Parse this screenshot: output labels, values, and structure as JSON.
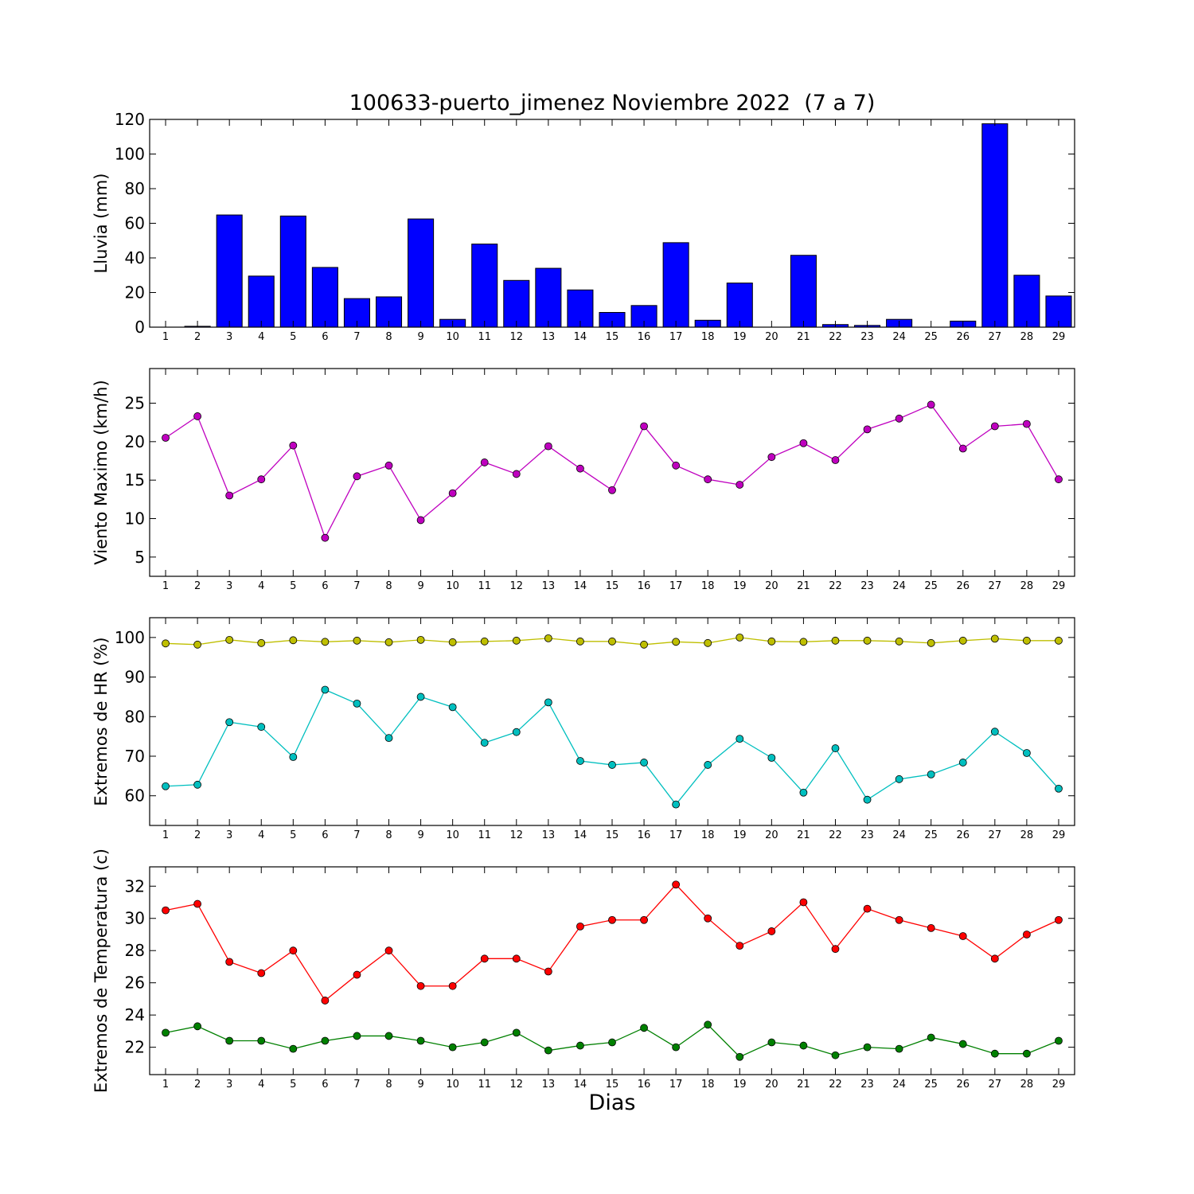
{
  "title": "100633-puerto_jimenez Noviembre 2022  (7 a 7)",
  "xlabel": "Dias",
  "chart_data": [
    {
      "type": "bar",
      "ylabel": "Lluvia (mm)",
      "ylim": [
        0,
        120
      ],
      "yticks": [
        0,
        20,
        40,
        60,
        80,
        100,
        120
      ],
      "categories": [
        1,
        2,
        3,
        4,
        5,
        6,
        7,
        8,
        9,
        10,
        11,
        12,
        13,
        14,
        15,
        16,
        17,
        18,
        19,
        20,
        21,
        22,
        23,
        24,
        25,
        26,
        27,
        28,
        29
      ],
      "series": [
        {
          "color": "#0000ff",
          "values": [
            0,
            0.5,
            64.8,
            29.5,
            64.2,
            34.5,
            16.5,
            17.5,
            62.5,
            4.5,
            48,
            27,
            34,
            21.5,
            8.5,
            12.5,
            48.8,
            4,
            25.5,
            0,
            41.5,
            1.5,
            1,
            4.5,
            0,
            3.5,
            117.5,
            30,
            18
          ]
        }
      ]
    },
    {
      "type": "line",
      "ylabel": "Viento Maximo (km/h)",
      "ylim": [
        2.5,
        29.5
      ],
      "yticks": [
        5,
        10,
        15,
        20,
        25
      ],
      "categories": [
        1,
        2,
        3,
        4,
        5,
        6,
        7,
        8,
        9,
        10,
        11,
        12,
        13,
        14,
        15,
        16,
        17,
        18,
        19,
        20,
        21,
        22,
        23,
        24,
        25,
        26,
        27,
        28,
        29
      ],
      "series": [
        {
          "color": "#bf00bf",
          "values": [
            20.5,
            23.3,
            13,
            15.1,
            19.5,
            7.5,
            15.5,
            16.9,
            9.8,
            13.3,
            17.3,
            15.8,
            19.4,
            16.5,
            13.7,
            22,
            16.9,
            15.1,
            14.4,
            18,
            19.8,
            17.6,
            21.6,
            23,
            24.8,
            19.1,
            22,
            22.3,
            15.1
          ]
        }
      ]
    },
    {
      "type": "line",
      "ylabel": "Extremos de HR (%)",
      "ylim": [
        52.5,
        105
      ],
      "yticks": [
        60,
        70,
        80,
        90,
        100
      ],
      "categories": [
        1,
        2,
        3,
        4,
        5,
        6,
        7,
        8,
        9,
        10,
        11,
        12,
        13,
        14,
        15,
        16,
        17,
        18,
        19,
        20,
        21,
        22,
        23,
        24,
        25,
        26,
        27,
        28,
        29
      ],
      "series": [
        {
          "color": "#bfbf00",
          "values": [
            98.5,
            98.2,
            99.4,
            98.6,
            99.3,
            98.9,
            99.2,
            98.8,
            99.4,
            98.8,
            99,
            99.2,
            99.8,
            99,
            99,
            98.2,
            98.9,
            98.6,
            100,
            99,
            98.9,
            99.2,
            99.2,
            99,
            98.6,
            99.2,
            99.7,
            99.2,
            99.2
          ]
        },
        {
          "color": "#00bfbf",
          "values": [
            62.4,
            62.8,
            78.6,
            77.4,
            69.8,
            86.8,
            83.3,
            74.6,
            85,
            82.4,
            73.4,
            76.1,
            83.6,
            68.8,
            67.8,
            68.4,
            57.8,
            67.8,
            74.4,
            69.6,
            60.8,
            72,
            59,
            64.2,
            65.4,
            68.4,
            76.2,
            70.8,
            61.8
          ]
        }
      ]
    },
    {
      "type": "line",
      "ylabel": "Extremos de Temperatura (c)",
      "ylim": [
        20.3,
        33.2
      ],
      "yticks": [
        22,
        24,
        26,
        28,
        30,
        32
      ],
      "categories": [
        1,
        2,
        3,
        4,
        5,
        6,
        7,
        8,
        9,
        10,
        11,
        12,
        13,
        14,
        15,
        16,
        17,
        18,
        19,
        20,
        21,
        22,
        23,
        24,
        25,
        26,
        27,
        28,
        29
      ],
      "series": [
        {
          "color": "#ff0000",
          "values": [
            30.5,
            30.9,
            27.3,
            26.6,
            28,
            24.9,
            26.5,
            28,
            25.8,
            25.8,
            27.5,
            27.5,
            26.7,
            29.5,
            29.9,
            29.9,
            32.1,
            30,
            28.3,
            29.2,
            31,
            28.1,
            30.6,
            29.9,
            29.4,
            28.9,
            27.5,
            29,
            29.9
          ]
        },
        {
          "color": "#008000",
          "values": [
            22.9,
            23.3,
            22.4,
            22.4,
            21.9,
            22.4,
            22.7,
            22.7,
            22.4,
            22,
            22.3,
            22.9,
            21.8,
            22.1,
            22.3,
            23.2,
            22,
            23.4,
            21.4,
            22.3,
            22.1,
            21.5,
            22,
            21.9,
            22.6,
            22.2,
            21.6,
            21.6,
            22.4
          ]
        }
      ]
    }
  ]
}
